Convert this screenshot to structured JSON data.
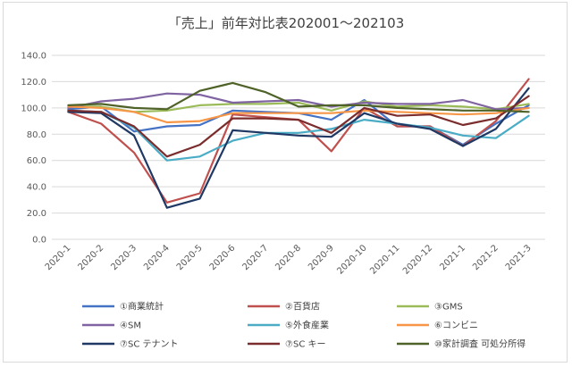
{
  "chart_data": {
    "type": "line",
    "title": "「売上」前年対比表202001～202103",
    "xlabel": "",
    "ylabel": "",
    "ylim": [
      0,
      140
    ],
    "y_ticks": [
      "0.0",
      "20.0",
      "40.0",
      "60.0",
      "80.0",
      "100.0",
      "120.0",
      "140.0"
    ],
    "grid": true,
    "legend_position": "bottom",
    "categories": [
      "2020-1",
      "2020-2",
      "2020-3",
      "2020-4",
      "2020-5",
      "2020-6",
      "2020-7",
      "2020-8",
      "2020-9",
      "2020-10",
      "2020-11",
      "2020-12",
      "2021-1",
      "2021-2",
      "2021-3"
    ],
    "series": [
      {
        "name": "①商業統計",
        "color": "#4472C4",
        "values": [
          99,
          101,
          82,
          86,
          87,
          98,
          97,
          96,
          91,
          106,
          86,
          86,
          72,
          88,
          102
        ]
      },
      {
        "name": "②百貨店",
        "color": "#C0504D",
        "values": [
          97,
          88,
          66,
          28,
          35,
          95,
          93,
          91,
          67,
          100,
          86,
          86,
          71,
          90,
          122
        ]
      },
      {
        "name": "③GMS",
        "color": "#9BBB59",
        "values": [
          101,
          101,
          97,
          98,
          102,
          103,
          103,
          104,
          98,
          105,
          101,
          102,
          101,
          99,
          103
        ]
      },
      {
        "name": "④SM",
        "color": "#8064A2",
        "values": [
          100,
          105,
          107,
          111,
          110,
          104,
          105,
          106,
          101,
          104,
          103,
          103,
          106,
          99,
          100
        ]
      },
      {
        "name": "⑤外食産業",
        "color": "#4BACC6",
        "values": [
          98,
          97,
          85,
          60,
          63,
          75,
          81,
          81,
          84,
          91,
          88,
          85,
          79,
          77,
          94
        ]
      },
      {
        "name": "⑥コンビニ",
        "color": "#F79646",
        "values": [
          101,
          100,
          97,
          89,
          90,
          96,
          96,
          96,
          96,
          98,
          97,
          96,
          95,
          96,
          100
        ]
      },
      {
        "name": "⑦SC テナント",
        "color": "#1F3864",
        "values": [
          97,
          96,
          79,
          24,
          31,
          83,
          81,
          79,
          78,
          96,
          88,
          84,
          71,
          84,
          115
        ]
      },
      {
        "name": "⑦SC キー",
        "color": "#7B2C2C",
        "values": [
          98,
          97,
          86,
          63,
          72,
          92,
          92,
          91,
          81,
          100,
          94,
          95,
          87,
          92,
          109
        ]
      },
      {
        "name": "⑩家計調査 可処分所得",
        "color": "#4F6228",
        "values": [
          102,
          103,
          100,
          99,
          113,
          119,
          112,
          101,
          102,
          102,
          100,
          99,
          98,
          98,
          97
        ]
      }
    ]
  }
}
